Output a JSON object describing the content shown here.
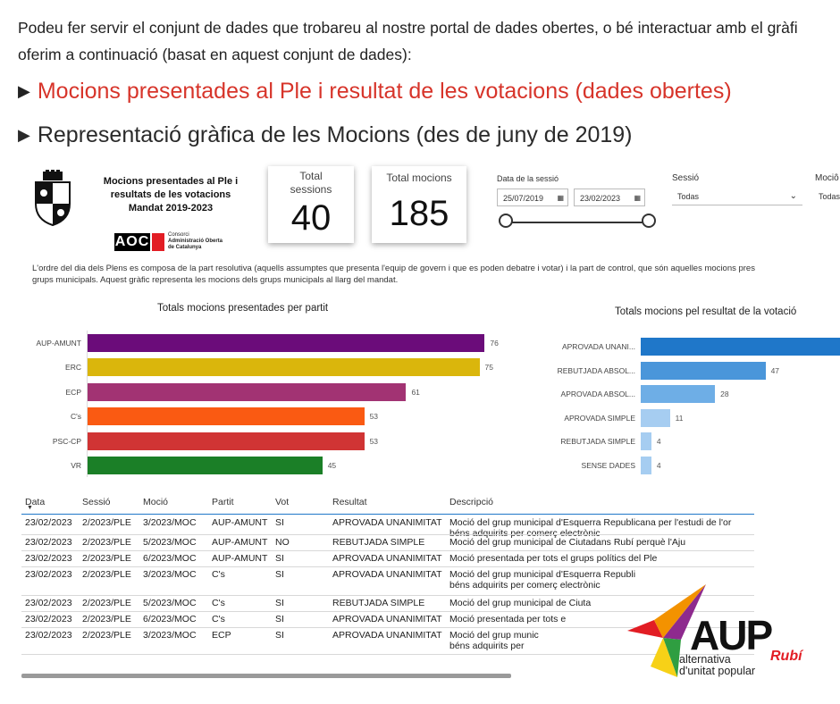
{
  "intro": {
    "line1": "Podeu fer servir el conjunt de dades que trobareu al nostre portal de dades obertes, o bé interactuar amb el gràfi",
    "line2": "oferim a continuació (basat en aquest conjunt de dades):"
  },
  "links": {
    "open_data": "Mocions presentades al Ple i resultat de les votacions (dades obertes)",
    "graphic": "Representació gràfica de les Mocions (des de juny de 2019)",
    "link_color": "#d7342a"
  },
  "report": {
    "title_l1": "Mocions presentades al Ple i",
    "title_l2": "resultats de les votacions",
    "title_l3": "Mandat 2019-2023",
    "aoc_letters": "AOC",
    "aoc_text_l1": "Consorci",
    "aoc_text_l2": "Administració Oberta",
    "aoc_text_l3": "de Catalunya",
    "card_sessions_label_l1": "Total",
    "card_sessions_label_l2": "sessions",
    "card_sessions_value": "40",
    "card_mocions_label": "Total mocions",
    "card_mocions_value": "185",
    "filter_date_label": "Data de la sessió",
    "filter_date_from": "25/07/2019",
    "filter_date_to": "23/02/2023",
    "filter_session_label": "Sessió",
    "filter_session_value": "Todas",
    "filter_mocio_label": "Mociô",
    "filter_mocio_value": "Todas",
    "desc_l1": "L'ordre del dia dels Plens es composa de la part resolutiva (aquells assumptes que presenta l'equip de govern i que es poden debatre i votar) i la part de control, que són aquelles mocions pres",
    "desc_l2": "grups municipals. Aquest gràfic representa les mocions dels grups municipals al llarg del mandat."
  },
  "chart_data": [
    {
      "type": "bar",
      "orientation": "horizontal",
      "title": "Totals mocions presentades per partit",
      "categories": [
        "AUP-AMUNT",
        "ERC",
        "ECP",
        "C's",
        "PSC-CP",
        "VR"
      ],
      "values": [
        76,
        75,
        61,
        53,
        53,
        45
      ],
      "colors": [
        "#6b0c7a",
        "#dab60c",
        "#a23373",
        "#fa5a12",
        "#d03434",
        "#1b7f27"
      ],
      "xlim": [
        0,
        80
      ]
    },
    {
      "type": "bar",
      "orientation": "horizontal",
      "title": "Totals mocions pel resultat de la votació",
      "categories": [
        "APROVADA UNANI...",
        "REBUTJADA ABSOL...",
        "APROVADA ABSOL...",
        "APROVADA SIMPLE",
        "REBUTJADA SIMPLE",
        "SENSE DADES"
      ],
      "values": [
        null,
        47,
        28,
        11,
        4,
        4
      ],
      "colors": [
        "#1f77c9",
        "#4a96da",
        "#6eaee6",
        "#a6cdf1",
        "#a6cdf1",
        "#a6cdf1"
      ],
      "xlim": [
        0,
        80
      ]
    }
  ],
  "table": {
    "headers": [
      "Data",
      "Sessió",
      "Moció",
      "Partit",
      "Vot",
      "Resultat",
      "Descripció"
    ],
    "rows": [
      [
        "23/02/2023",
        "2/2023/PLE",
        "3/2023/MOC",
        "AUP-AMUNT",
        "SI",
        "APROVADA UNANIMITAT",
        "Moció del grup municipal d'Esquerra Republicana per l'estudi de l'or",
        "béns adquirits per comerç electrònic"
      ],
      [
        "23/02/2023",
        "2/2023/PLE",
        "5/2023/MOC",
        "AUP-AMUNT",
        "NO",
        "REBUTJADA SIMPLE",
        "Moció del grup municipal de Ciutadans Rubí perquè l'Aju",
        ""
      ],
      [
        "23/02/2023",
        "2/2023/PLE",
        "6/2023/MOC",
        "AUP-AMUNT",
        "SI",
        "APROVADA UNANIMITAT",
        "Moció presentada per tots el grups polítics del Ple",
        ""
      ],
      [
        "23/02/2023",
        "2/2023/PLE",
        "3/2023/MOC",
        "C's",
        "SI",
        "APROVADA UNANIMITAT",
        "Moció del grup municipal d'Esquerra Republi",
        "béns adquirits per comerç electrònic"
      ],
      [
        "23/02/2023",
        "2/2023/PLE",
        "5/2023/MOC",
        "C's",
        "SI",
        "REBUTJADA SIMPLE",
        "Moció del grup municipal de Ciuta",
        ""
      ],
      [
        "23/02/2023",
        "2/2023/PLE",
        "6/2023/MOC",
        "C's",
        "SI",
        "APROVADA UNANIMITAT",
        "Moció presentada per tots e",
        ""
      ],
      [
        "23/02/2023",
        "2/2023/PLE",
        "3/2023/MOC",
        "ECP",
        "SI",
        "APROVADA UNANIMITAT",
        "Moció del grup munic",
        "béns adquirits per"
      ]
    ]
  },
  "aup": {
    "name": "AUP",
    "city": "Rubí",
    "sub_l1": "alternativa",
    "sub_l2": "d'unitat popular"
  }
}
